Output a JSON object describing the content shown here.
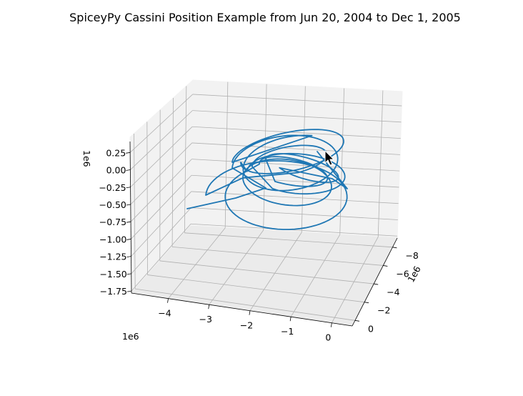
{
  "chart_data": {
    "type": "line",
    "projection": "3d",
    "title": "SpiceyPy Cassini Position Example from Jun 20, 2004 to Dec 1, 2005",
    "color": "#1f77b4",
    "x_axis": {
      "ticks": [
        -4,
        -3,
        -2,
        -1,
        0
      ],
      "tick_labels": [
        "−4",
        "−3",
        "−2",
        "−1",
        "0"
      ],
      "offset_label": "1e6",
      "range": [
        -4.9,
        0.5
      ]
    },
    "y_axis": {
      "ticks": [
        0,
        -2,
        -4,
        -6,
        -8
      ],
      "tick_labels": [
        "0",
        "−2",
        "−4",
        "−6",
        "−8"
      ],
      "offset_label": "1e6",
      "range": [
        -9,
        0.6
      ]
    },
    "z_axis": {
      "ticks": [
        0.25,
        0,
        -0.25,
        -0.5,
        -0.75,
        -1,
        -1.25,
        -1.5,
        -1.75
      ],
      "tick_labels": [
        "0.25",
        "0.00",
        "−0.25",
        "−0.50",
        "−0.75",
        "−1.00",
        "−1.25",
        "−1.50",
        "−1.75"
      ],
      "offset_label": "1e6",
      "range": [
        -1.78,
        0.47
      ]
    },
    "grid": true
  },
  "cursor": {
    "icon": "mouse-pointer-icon"
  }
}
